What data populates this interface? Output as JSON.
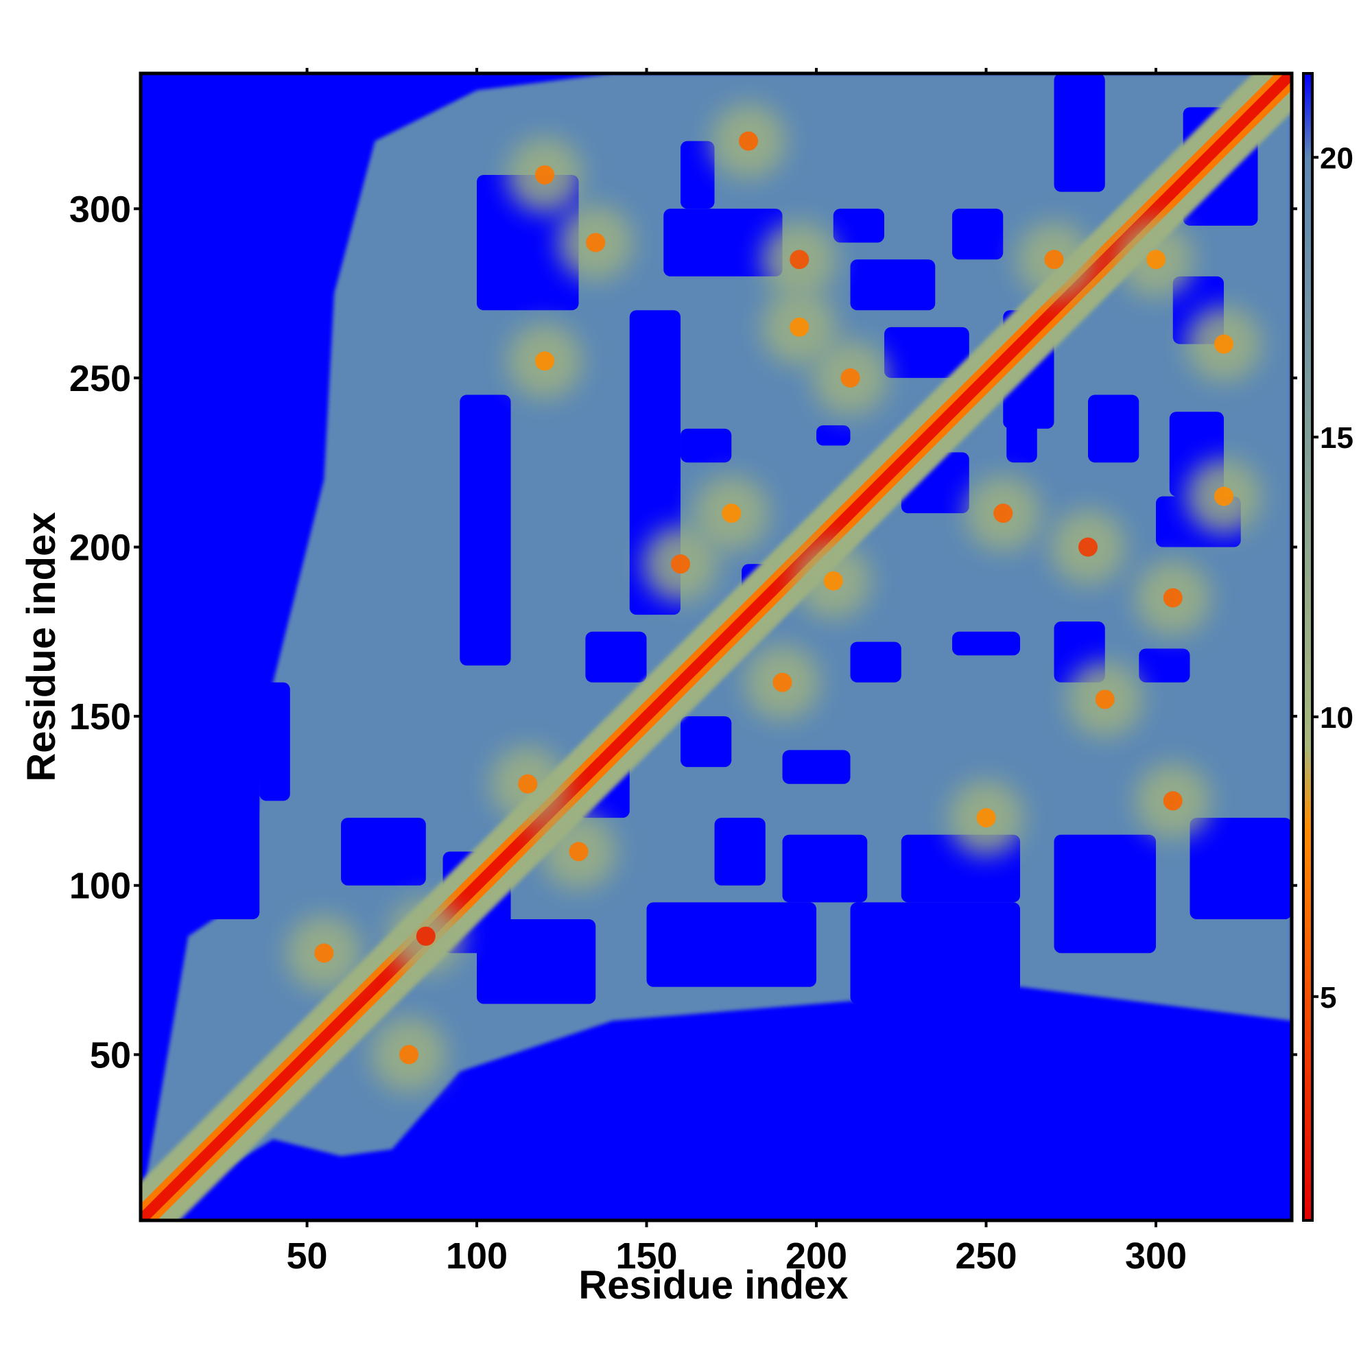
{
  "chart_data": {
    "type": "heatmap",
    "title": "",
    "xlabel": "Residue index",
    "ylabel": "Residue index",
    "xlim": [
      1,
      340
    ],
    "ylim": [
      1,
      340
    ],
    "x_ticks": [
      50,
      100,
      150,
      200,
      250,
      300
    ],
    "y_ticks": [
      50,
      100,
      150,
      200,
      250,
      300
    ],
    "x_tick_labels": [
      "50",
      "100",
      "150",
      "200",
      "250",
      "300"
    ],
    "y_tick_labels": [
      "50",
      "100",
      "150",
      "200",
      "250",
      "300"
    ],
    "colorbar": {
      "range": [
        1,
        21.5
      ],
      "ticks": [
        5,
        10,
        15,
        20
      ],
      "tick_labels": [
        "5",
        "10",
        "15",
        "20"
      ],
      "colors": [
        "#e60000",
        "#ff8c00",
        "#a8b87a",
        "#5d88b5",
        "#0000ff"
      ],
      "stops": [
        1,
        8,
        9.5,
        20,
        21.5
      ]
    },
    "grid": false,
    "legend": "none",
    "diagonal_line": {
      "from": [
        1,
        1
      ],
      "to": [
        340,
        340
      ]
    },
    "contacts": [
      {
        "x": 85,
        "y": 85,
        "value": 3
      },
      {
        "x": 120,
        "y": 310,
        "value": 7
      },
      {
        "x": 135,
        "y": 290,
        "value": 7
      },
      {
        "x": 180,
        "y": 320,
        "value": 6
      },
      {
        "x": 195,
        "y": 285,
        "value": 5
      },
      {
        "x": 195,
        "y": 265,
        "value": 8
      },
      {
        "x": 210,
        "y": 250,
        "value": 7
      },
      {
        "x": 160,
        "y": 195,
        "value": 6
      },
      {
        "x": 175,
        "y": 210,
        "value": 8
      },
      {
        "x": 190,
        "y": 160,
        "value": 7
      },
      {
        "x": 205,
        "y": 190,
        "value": 8
      },
      {
        "x": 255,
        "y": 210,
        "value": 6
      },
      {
        "x": 280,
        "y": 200,
        "value": 4
      },
      {
        "x": 305,
        "y": 185,
        "value": 6
      },
      {
        "x": 270,
        "y": 285,
        "value": 7
      },
      {
        "x": 300,
        "y": 285,
        "value": 8
      },
      {
        "x": 285,
        "y": 155,
        "value": 7
      },
      {
        "x": 305,
        "y": 125,
        "value": 6
      },
      {
        "x": 250,
        "y": 120,
        "value": 8
      },
      {
        "x": 120,
        "y": 255,
        "value": 8
      },
      {
        "x": 115,
        "y": 130,
        "value": 7
      },
      {
        "x": 130,
        "y": 110,
        "value": 7
      },
      {
        "x": 55,
        "y": 80,
        "value": 7
      },
      {
        "x": 80,
        "y": 50,
        "value": 7
      },
      {
        "x": 320,
        "y": 260,
        "value": 8
      },
      {
        "x": 320,
        "y": 215,
        "value": 8
      }
    ],
    "far_region": {
      "note": "blue background where distance > 20"
    }
  }
}
